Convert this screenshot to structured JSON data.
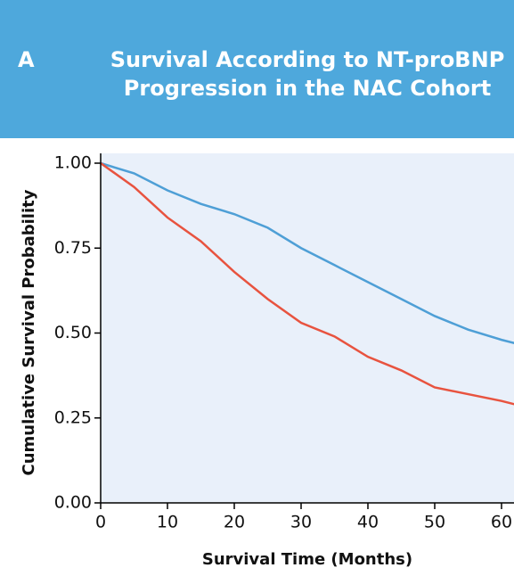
{
  "panel_label": "A",
  "chart_data": {
    "type": "line",
    "title": "Survival According to NT-proBNP Progression in the NAC Cohort",
    "x_label": "Survival Time (Months)",
    "y_label": "Cumulative Survival Probability",
    "x": [
      0,
      5,
      10,
      15,
      20,
      25,
      30,
      35,
      40,
      45,
      50,
      55,
      60,
      62
    ],
    "series": [
      {
        "color": "#4e9fd6",
        "values": [
          1.0,
          0.97,
          0.92,
          0.88,
          0.85,
          0.81,
          0.75,
          0.7,
          0.65,
          0.6,
          0.55,
          0.51,
          0.48,
          0.47
        ]
      },
      {
        "color": "#e8533f",
        "values": [
          1.0,
          0.93,
          0.84,
          0.77,
          0.68,
          0.6,
          0.53,
          0.49,
          0.43,
          0.39,
          0.34,
          0.32,
          0.3,
          0.29
        ]
      }
    ],
    "xlim": [
      0,
      62
    ],
    "xticks": [
      0,
      10,
      20,
      30,
      40,
      50,
      60
    ],
    "ylim": [
      0,
      1
    ],
    "yticks": [
      {
        "value": 0,
        "label": "0.00"
      },
      {
        "value": 0.25,
        "label": "0.25"
      },
      {
        "value": 0.5,
        "label": "0.50"
      },
      {
        "value": 0.75,
        "label": "0.75"
      },
      {
        "value": 1,
        "label": "1.00"
      }
    ]
  }
}
